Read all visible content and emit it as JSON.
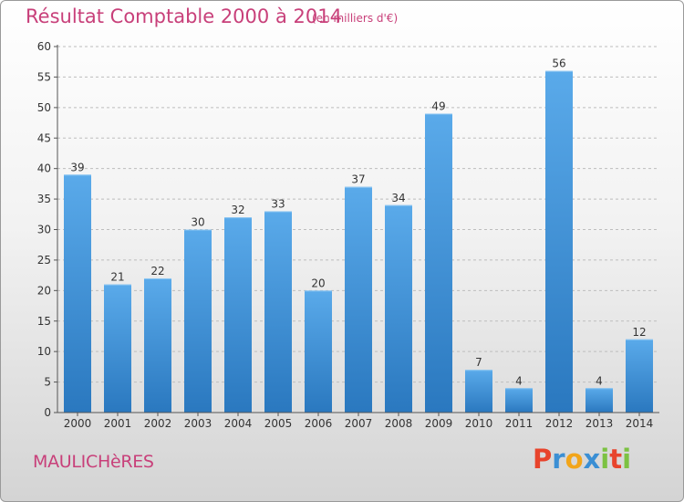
{
  "header": {
    "title": "Résultat Comptable 2000 à 2014",
    "subtitle": "(en milliers d'€)"
  },
  "footer": {
    "place": "MAULICHèRES",
    "logo": "Proxiti",
    "logo_colors": [
      "#e8442c",
      "#3b8fd4",
      "#f2a51a",
      "#3b8fd4",
      "#7cc242",
      "#e8442c",
      "#7cc242"
    ]
  },
  "colors": {
    "bar": "#4a9de2",
    "bar_dark": "#2f7fc6",
    "text": "#c8407a",
    "axis": "#555555",
    "grid": "#bdbdbd"
  },
  "chart_data": {
    "type": "bar",
    "categories": [
      "2000",
      "2001",
      "2002",
      "2003",
      "2004",
      "2005",
      "2006",
      "2007",
      "2008",
      "2009",
      "2010",
      "2011",
      "2012",
      "2013",
      "2014"
    ],
    "values": [
      39,
      21,
      22,
      30,
      32,
      33,
      20,
      37,
      34,
      49,
      7,
      4,
      56,
      4,
      12
    ],
    "ylim": [
      0,
      60
    ],
    "yticks": [
      0,
      5,
      10,
      15,
      20,
      25,
      30,
      35,
      40,
      45,
      50,
      55,
      60
    ],
    "grid": true
  }
}
